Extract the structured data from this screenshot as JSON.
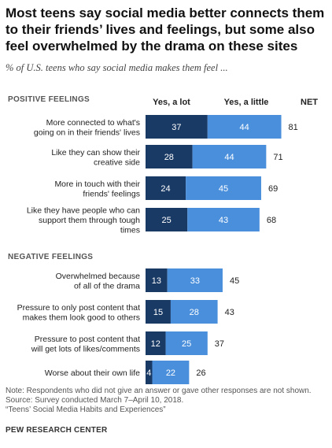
{
  "title": "Most teens say social media better connects them to their friends’ lives and feelings, but some also feel overwhelmed by the drama on these sites",
  "subtitle": "% of U.S. teens who say social media makes them feel ...",
  "chart_data": {
    "type": "bar",
    "orientation": "horizontal",
    "stacked": true,
    "legend_labels": [
      "Yes, a lot",
      "Yes, a little"
    ],
    "net_label": "NET",
    "colors": {
      "a_lot": "#1a3a66",
      "a_little": "#4a8fdc"
    },
    "xlim": [
      0,
      100
    ],
    "groups": [
      {
        "name": "POSITIVE FEELINGS",
        "items": [
          {
            "label": [
              "More connected to what's",
              "going on in their friends' lives"
            ],
            "a_lot": 37,
            "a_little": 44,
            "net": 81
          },
          {
            "label": [
              "Like they can show their",
              "creative side"
            ],
            "a_lot": 28,
            "a_little": 44,
            "net": 71
          },
          {
            "label": [
              "More in touch with their",
              "friends' feelings"
            ],
            "a_lot": 24,
            "a_little": 45,
            "net": 69
          },
          {
            "label": [
              "Like they have people who can",
              "support them through tough",
              "times"
            ],
            "a_lot": 25,
            "a_little": 43,
            "net": 68
          }
        ]
      },
      {
        "name": "NEGATIVE FEELINGS",
        "items": [
          {
            "label": [
              "Overwhelmed because",
              "of all of the drama"
            ],
            "a_lot": 13,
            "a_little": 33,
            "net": 45
          },
          {
            "label": [
              "Pressure to only post content that",
              "makes them look good to others"
            ],
            "a_lot": 15,
            "a_little": 28,
            "net": 43
          },
          {
            "label": [
              "Pressure to post content that",
              "will get lots of likes/comments"
            ],
            "a_lot": 12,
            "a_little": 25,
            "net": 37
          },
          {
            "label": [
              "Worse about their own life"
            ],
            "a_lot": 4,
            "a_little": 22,
            "net": 26
          }
        ]
      }
    ]
  },
  "notes": [
    "Note: Respondents who did not give an answer or gave other responses are not shown.",
    "Source: Survey conducted March 7–April 10, 2018.",
    "“Teens’ Social Media Habits and Experiences”"
  ],
  "source_org": "PEW RESEARCH CENTER"
}
